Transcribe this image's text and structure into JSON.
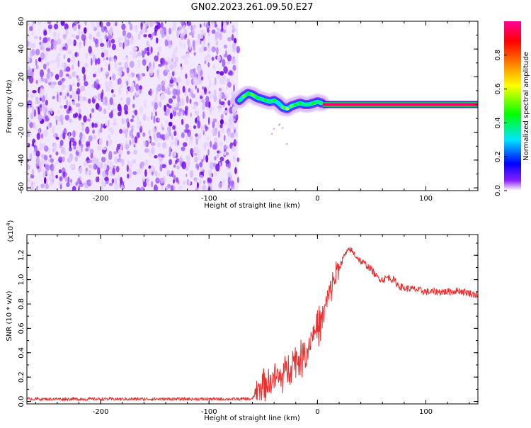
{
  "title": "GN02.2023.261.09.50.E27",
  "colorbar": {
    "label": "Normalized spectral amplitude",
    "ticks": [
      "0.0",
      "0.2",
      "0.4",
      "0.6",
      "0.8"
    ],
    "tick_values": [
      0,
      0.2,
      0.4,
      0.6,
      0.8
    ],
    "range": [
      0,
      1
    ],
    "colormap": [
      "#ffffff",
      "#7a00ff",
      "#0000ff",
      "#00e5ff",
      "#00ff00",
      "#ffff00",
      "#ff8000",
      "#ff0000",
      "#ff0099"
    ]
  },
  "chart_data": [
    {
      "type": "heatmap",
      "title": "",
      "xlabel": "Height of straight line (km)",
      "ylabel": "Frequency (Hz)",
      "xlim": [
        -268,
        148
      ],
      "ylim": [
        -62,
        60
      ],
      "xticks": [
        -200,
        -100,
        0,
        100
      ],
      "xtick_labels": [
        "-200",
        "-100",
        "0",
        "100"
      ],
      "yticks": [
        -60,
        -40,
        -20,
        0,
        20,
        40,
        60
      ],
      "ytick_labels": [
        "-60",
        "-40",
        "-20",
        "0",
        "20",
        "40",
        "60"
      ],
      "noise_region_x": [
        -268,
        -73
      ],
      "signal_track": {
        "x": [
          -72,
          -68,
          -64,
          -60,
          -56,
          -52,
          -48,
          -44,
          -40,
          -36,
          -32,
          -28,
          -24,
          -20,
          -16,
          -12,
          -8,
          -4,
          0,
          4
        ],
        "freq": [
          3,
          6,
          8,
          7,
          5,
          4,
          3,
          2,
          3,
          1,
          -2,
          -3,
          -1,
          0,
          1,
          0,
          0,
          1,
          2,
          1
        ],
        "amplitude": [
          0.45,
          0.55,
          0.5,
          0.55,
          0.5,
          0.45,
          0.5,
          0.45,
          0.5,
          0.4,
          0.55,
          0.6,
          0.55,
          0.5,
          0.5,
          0.45,
          0.45,
          0.5,
          0.45,
          0.45
        ]
      },
      "carrier_line": {
        "x": [
          5,
          148
        ],
        "freq": 0,
        "amplitude": 0.95
      },
      "grid": false
    },
    {
      "type": "line",
      "title": "",
      "xlabel": "Height of straight line (km)",
      "ylabel": "SNR (10 * v/v)",
      "y_scale_label": "(x10",
      "y_scale_exp": "4",
      "y_scale_close": ")",
      "xlim": [
        -268,
        148
      ],
      "ylim": [
        -0.02,
        1.37
      ],
      "xticks": [
        -200,
        -100,
        0,
        100
      ],
      "xtick_labels": [
        "-200",
        "-100",
        "0",
        "100"
      ],
      "yticks": [
        0,
        0.2,
        0.4,
        0.6,
        0.8,
        1.0,
        1.2
      ],
      "ytick_labels": [
        "0.0",
        "0.2",
        "0.4",
        "0.6",
        "0.8",
        "1.0",
        "1.2"
      ],
      "color": "#e83030",
      "grid": false,
      "x": [
        -268,
        -240,
        -200,
        -160,
        -120,
        -80,
        -60,
        -55,
        -50,
        -45,
        -40,
        -35,
        -30,
        -25,
        -20,
        -15,
        -10,
        -5,
        0,
        5,
        10,
        15,
        20,
        25,
        30,
        35,
        40,
        45,
        50,
        55,
        60,
        65,
        70,
        75,
        80,
        90,
        100,
        110,
        120,
        130,
        140,
        148
      ],
      "values": [
        0.02,
        0.02,
        0.02,
        0.02,
        0.02,
        0.02,
        0.02,
        0.1,
        0.15,
        0.15,
        0.2,
        0.18,
        0.25,
        0.3,
        0.35,
        0.35,
        0.4,
        0.55,
        0.6,
        0.7,
        0.85,
        1.0,
        1.1,
        1.2,
        1.25,
        1.2,
        1.15,
        1.12,
        1.08,
        1.02,
        1.0,
        1.02,
        1.0,
        0.95,
        0.93,
        0.92,
        0.9,
        0.9,
        0.9,
        0.91,
        0.89,
        0.87
      ]
    }
  ]
}
